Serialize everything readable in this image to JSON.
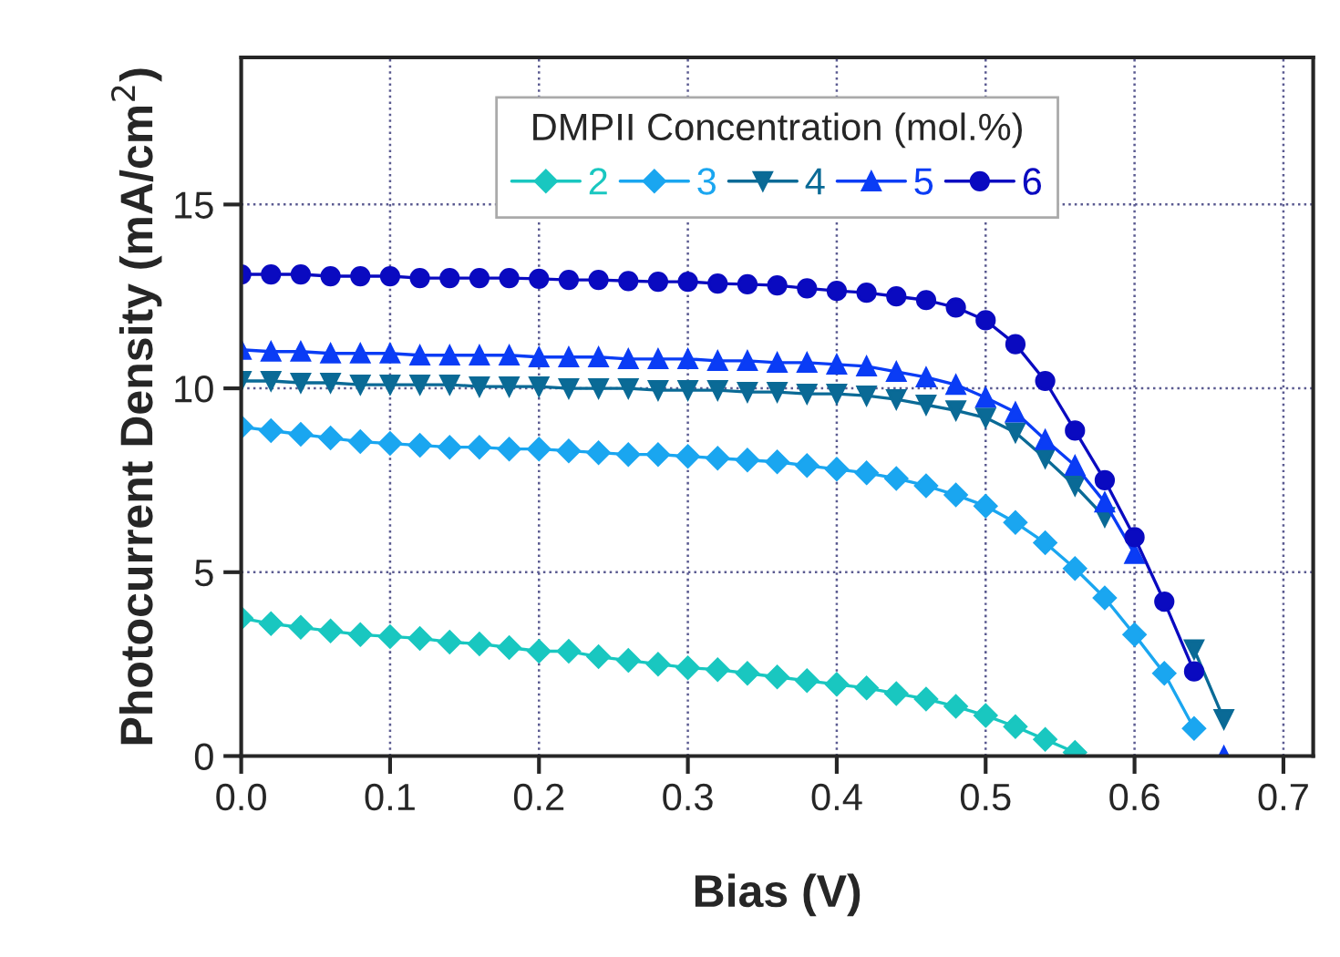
{
  "chart_data": {
    "type": "line",
    "xlabel": "Bias (V)",
    "ylabel": "Photocurrent Density (mA/cm$^{2}$)",
    "legend_title": "DMPII Concentration (mol.%)",
    "x": [
      0.0,
      0.02,
      0.04,
      0.06,
      0.08,
      0.1,
      0.12,
      0.14,
      0.16,
      0.18,
      0.2,
      0.22,
      0.24,
      0.26,
      0.28,
      0.3,
      0.32,
      0.34,
      0.36,
      0.38,
      0.4,
      0.42,
      0.44,
      0.46,
      0.48,
      0.5,
      0.52,
      0.54,
      0.56,
      0.58,
      0.6,
      0.62,
      0.64,
      0.66
    ],
    "series": [
      {
        "name": "2",
        "color": "#19c7c0",
        "marker": "diamond",
        "values": [
          3.75,
          3.6,
          3.5,
          3.4,
          3.3,
          3.25,
          3.2,
          3.1,
          3.05,
          2.95,
          2.85,
          2.85,
          2.7,
          2.6,
          2.5,
          2.4,
          2.35,
          2.25,
          2.15,
          2.05,
          1.95,
          1.85,
          1.7,
          1.55,
          1.35,
          1.1,
          0.8,
          0.45,
          0.1,
          null,
          null,
          null,
          null,
          null
        ]
      },
      {
        "name": "3",
        "color": "#1aa6f0",
        "marker": "diamond",
        "values": [
          8.95,
          8.85,
          8.75,
          8.65,
          8.55,
          8.5,
          8.45,
          8.4,
          8.4,
          8.35,
          8.35,
          8.3,
          8.25,
          8.2,
          8.2,
          8.15,
          8.1,
          8.05,
          8.0,
          7.9,
          7.8,
          7.7,
          7.55,
          7.35,
          7.1,
          6.8,
          6.35,
          5.8,
          5.1,
          4.3,
          3.3,
          2.25,
          0.75,
          null
        ]
      },
      {
        "name": "4",
        "color": "#0a6a96",
        "marker": "triangle-down",
        "values": [
          10.2,
          10.2,
          10.15,
          10.15,
          10.1,
          10.1,
          10.1,
          10.1,
          10.05,
          10.05,
          10.05,
          10.0,
          10.0,
          10.0,
          9.95,
          9.95,
          9.95,
          9.9,
          9.9,
          9.85,
          9.85,
          9.8,
          9.7,
          9.55,
          9.4,
          9.2,
          8.8,
          8.1,
          7.35,
          6.5,
          null,
          null,
          2.9,
          1.0
        ]
      },
      {
        "name": "5",
        "color": "#0a3cf5",
        "marker": "triangle",
        "values": [
          11.05,
          11.0,
          11.0,
          10.95,
          10.95,
          10.95,
          10.9,
          10.9,
          10.9,
          10.9,
          10.85,
          10.85,
          10.85,
          10.8,
          10.8,
          10.8,
          10.75,
          10.75,
          10.7,
          10.7,
          10.65,
          10.6,
          10.45,
          10.3,
          10.1,
          9.75,
          9.35,
          8.6,
          7.9,
          6.9,
          5.5,
          null,
          null,
          0.0
        ]
      },
      {
        "name": "6",
        "color": "#0a0ac0",
        "marker": "circle",
        "values": [
          13.1,
          13.1,
          13.1,
          13.05,
          13.05,
          13.05,
          13.0,
          13.0,
          13.0,
          13.0,
          12.98,
          12.95,
          12.95,
          12.92,
          12.9,
          12.9,
          12.85,
          12.83,
          12.8,
          12.72,
          12.65,
          12.6,
          12.5,
          12.4,
          12.2,
          11.85,
          11.2,
          10.2,
          8.85,
          7.5,
          5.95,
          4.2,
          2.3,
          null
        ]
      }
    ],
    "xlim": [
      0,
      0.72
    ],
    "ylim": [
      0,
      19
    ],
    "xticks": [
      {
        "value": 0,
        "label": "0.0"
      },
      0.1,
      0.2,
      0.3,
      0.4,
      0.5,
      0.6,
      0.7
    ],
    "yticks": [
      0,
      5,
      10,
      15
    ],
    "grid": true,
    "legend": "top",
    "line_style": "solid"
  }
}
